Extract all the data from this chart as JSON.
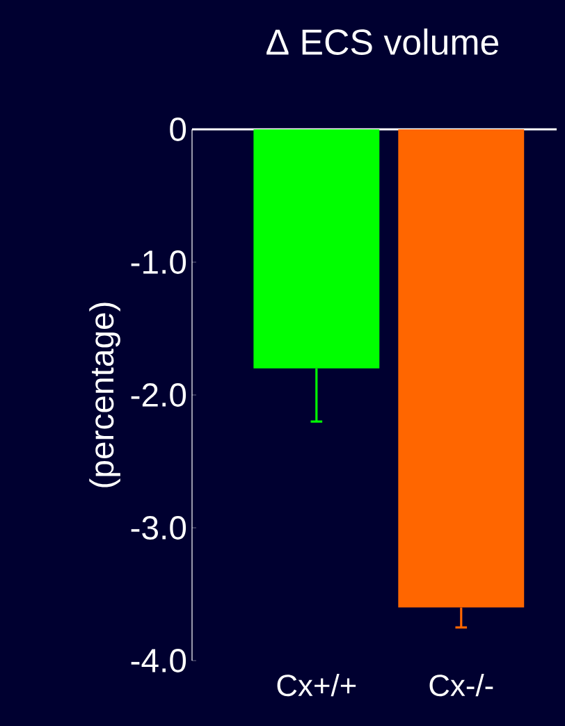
{
  "chart_data": {
    "type": "bar",
    "title": "Δ ECS volume",
    "ylabel": "(percentage)",
    "categories": [
      "Cx+/+",
      "Cx-/-"
    ],
    "values": [
      -1.8,
      -3.6
    ],
    "colors": [
      "#00ff00",
      "#ff6600"
    ],
    "errors": [
      [
        -2.2,
        -1.8
      ],
      [
        -3.75,
        -3.6
      ]
    ],
    "ylim": [
      -4.0,
      0
    ],
    "yticks": [
      0,
      {
        "value": -1.0,
        "label": "-1.0"
      },
      {
        "value": -2.0,
        "label": "-2.0"
      },
      {
        "value": -3.0,
        "label": "-3.0"
      },
      {
        "value": -4.0,
        "label": "-4.0"
      }
    ]
  }
}
